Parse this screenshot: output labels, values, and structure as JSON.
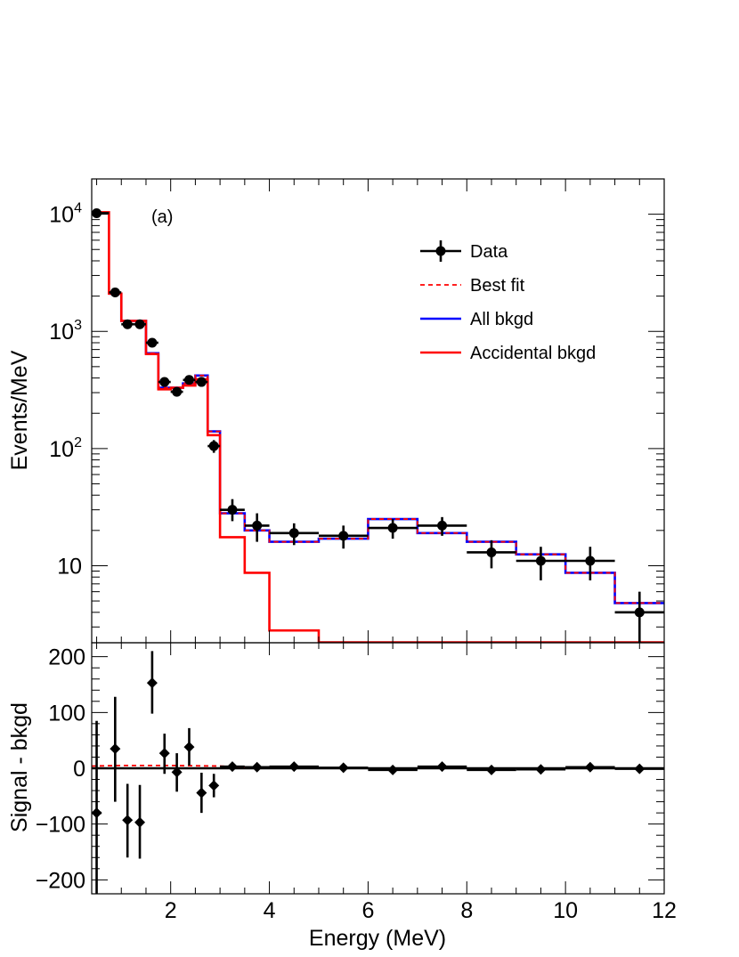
{
  "chart_data": [
    {
      "type": "line",
      "panel": "top",
      "ylabel": "Events/MeV",
      "yscale": "log",
      "ylim": [
        2.2,
        20000
      ],
      "xlim": [
        0.4,
        12
      ],
      "annotation": "(a)",
      "ytick_labels": [
        {
          "value": 10,
          "base": "10",
          "exp": ""
        },
        {
          "value": 100,
          "base": "10",
          "exp": "2"
        },
        {
          "value": 1000,
          "base": "10",
          "exp": "3"
        },
        {
          "value": 10000,
          "base": "10",
          "exp": "4"
        }
      ],
      "legend": {
        "placement": "top-right",
        "entries": [
          {
            "label": "Data",
            "style": "marker",
            "color": "#000000"
          },
          {
            "label": "Best fit",
            "style": "dashed",
            "color": "#ff0000"
          },
          {
            "label": "All bkgd",
            "style": "solid",
            "color": "#0000ff"
          },
          {
            "label": "Accidental bkgd",
            "style": "solid",
            "color": "#ff0000"
          }
        ]
      },
      "series": [
        {
          "name": "Data",
          "color": "#000000",
          "points": [
            {
              "x": 0.5,
              "y": 10200,
              "xlo": 0.4,
              "xhi": 0.75,
              "ylo": 10100,
              "yhi": 10300
            },
            {
              "x": 0.875,
              "y": 2150,
              "xlo": 0.75,
              "xhi": 1.0,
              "ylo": 2100,
              "yhi": 2200
            },
            {
              "x": 1.125,
              "y": 1150,
              "xlo": 1.0,
              "xhi": 1.25,
              "ylo": 1110,
              "yhi": 1190
            },
            {
              "x": 1.375,
              "y": 1150,
              "xlo": 1.25,
              "xhi": 1.5,
              "ylo": 1110,
              "yhi": 1190
            },
            {
              "x": 1.625,
              "y": 800,
              "xlo": 1.5,
              "xhi": 1.75,
              "ylo": 770,
              "yhi": 830
            },
            {
              "x": 1.875,
              "y": 370,
              "xlo": 1.75,
              "xhi": 2.0,
              "ylo": 350,
              "yhi": 390
            },
            {
              "x": 2.125,
              "y": 305,
              "xlo": 2.0,
              "xhi": 2.25,
              "ylo": 285,
              "yhi": 325
            },
            {
              "x": 2.375,
              "y": 385,
              "xlo": 2.25,
              "xhi": 2.5,
              "ylo": 365,
              "yhi": 405
            },
            {
              "x": 2.625,
              "y": 370,
              "xlo": 2.5,
              "xhi": 2.75,
              "ylo": 350,
              "yhi": 390
            },
            {
              "x": 2.875,
              "y": 105,
              "xlo": 2.75,
              "xhi": 3.0,
              "ylo": 92,
              "yhi": 118
            },
            {
              "x": 3.25,
              "y": 30,
              "xlo": 3.0,
              "xhi": 3.5,
              "ylo": 24,
              "yhi": 37
            },
            {
              "x": 3.75,
              "y": 22,
              "xlo": 3.5,
              "xhi": 4.0,
              "ylo": 16,
              "yhi": 28
            },
            {
              "x": 4.5,
              "y": 19,
              "xlo": 4.0,
              "xhi": 5.0,
              "ylo": 15,
              "yhi": 23
            },
            {
              "x": 5.5,
              "y": 18,
              "xlo": 5.0,
              "xhi": 6.0,
              "ylo": 14,
              "yhi": 22
            },
            {
              "x": 6.5,
              "y": 21,
              "xlo": 6.0,
              "xhi": 7.0,
              "ylo": 17,
              "yhi": 25
            },
            {
              "x": 7.5,
              "y": 22,
              "xlo": 7.0,
              "xhi": 8.0,
              "ylo": 18,
              "yhi": 26
            },
            {
              "x": 8.5,
              "y": 13,
              "xlo": 8.0,
              "xhi": 9.0,
              "ylo": 9.5,
              "yhi": 16.5
            },
            {
              "x": 9.5,
              "y": 11,
              "xlo": 9.0,
              "xhi": 10.0,
              "ylo": 7.5,
              "yhi": 14.5
            },
            {
              "x": 10.5,
              "y": 11,
              "xlo": 10.0,
              "xhi": 11.0,
              "ylo": 7.5,
              "yhi": 14.5
            },
            {
              "x": 11.5,
              "y": 4,
              "xlo": 11.0,
              "xhi": 12.0,
              "ylo": 1.5,
              "yhi": 6
            }
          ]
        },
        {
          "name": "All bkgd",
          "color": "#0000ff",
          "step_edges": [
            0.75,
            1.0,
            1.25,
            1.5,
            1.75,
            2.0,
            2.25,
            2.5,
            2.75,
            3.0,
            3.5,
            4.0,
            5.0,
            6.0,
            7.0,
            8.0,
            9.0,
            10.0,
            11.0,
            12.0
          ],
          "step_values": [
            2100,
            1230,
            1230,
            650,
            330,
            330,
            360,
            420,
            140,
            28,
            20,
            16,
            17,
            25,
            19,
            16,
            12.5,
            8.7,
            4.8
          ]
        },
        {
          "name": "Accidental bkgd",
          "color": "#ff0000",
          "step_edges": [
            0.55,
            0.75,
            1.0,
            1.25,
            1.5,
            1.75,
            2.0,
            2.25,
            2.5,
            2.75,
            3.0,
            3.5,
            4.0,
            5.0
          ],
          "step_values": [
            10400,
            2100,
            1230,
            1230,
            640,
            320,
            330,
            345,
            390,
            130,
            17.5,
            8.7,
            2.8
          ]
        },
        {
          "name": "Best fit",
          "color": "#ff0000",
          "step_edges": [
            0.55,
            0.75,
            1.0,
            1.25,
            1.5,
            1.75,
            2.0,
            2.25,
            2.5,
            2.75,
            3.0,
            3.5,
            4.0,
            5.0,
            6.0,
            7.0,
            8.0,
            9.0,
            10.0,
            11.0,
            12.0
          ],
          "step_values": [
            10400,
            2100,
            1230,
            1230,
            650,
            330,
            330,
            360,
            420,
            140,
            28,
            20,
            16,
            17,
            25,
            19,
            16,
            12.5,
            8.7,
            4.8
          ]
        }
      ]
    },
    {
      "type": "scatter",
      "panel": "bottom",
      "xlabel": "Energy (MeV)",
      "ylabel": "Signal - bkgd",
      "xlim": [
        0.4,
        12
      ],
      "ylim": [
        -225,
        225
      ],
      "xticks": [
        2,
        4,
        6,
        8,
        10,
        12
      ],
      "yticks": [
        -200,
        -100,
        0,
        100,
        200
      ],
      "ytick_labels": [
        "−200",
        "−100",
        "0",
        "100",
        "200"
      ],
      "series": [
        {
          "name": "Data",
          "color": "#000000",
          "points": [
            {
              "x": 0.5,
              "y": -80,
              "xlo": 0.4,
              "xhi": 0.6,
              "ylo": -225,
              "yhi": 85
            },
            {
              "x": 0.875,
              "y": 35,
              "xlo": 0.8,
              "xhi": 0.95,
              "ylo": -60,
              "yhi": 128
            },
            {
              "x": 1.125,
              "y": -93,
              "xlo": 1.05,
              "xhi": 1.2,
              "ylo": -160,
              "yhi": -28
            },
            {
              "x": 1.375,
              "y": -97,
              "xlo": 1.3,
              "xhi": 1.45,
              "ylo": -162,
              "yhi": -30
            },
            {
              "x": 1.625,
              "y": 153,
              "xlo": 1.55,
              "xhi": 1.7,
              "ylo": 98,
              "yhi": 210
            },
            {
              "x": 1.875,
              "y": 27,
              "xlo": 1.8,
              "xhi": 1.95,
              "ylo": -10,
              "yhi": 62
            },
            {
              "x": 2.125,
              "y": -7,
              "xlo": 2.05,
              "xhi": 2.2,
              "ylo": -42,
              "yhi": 27
            },
            {
              "x": 2.375,
              "y": 38,
              "xlo": 2.3,
              "xhi": 2.45,
              "ylo": 5,
              "yhi": 72
            },
            {
              "x": 2.625,
              "y": -44,
              "xlo": 2.55,
              "xhi": 2.7,
              "ylo": -80,
              "yhi": -8
            },
            {
              "x": 2.875,
              "y": -31,
              "xlo": 2.8,
              "xhi": 2.95,
              "ylo": -52,
              "yhi": -10
            },
            {
              "x": 3.25,
              "y": 3,
              "xlo": 3.0,
              "xhi": 3.5,
              "ylo": -4,
              "yhi": 10
            },
            {
              "x": 3.75,
              "y": 2,
              "xlo": 3.5,
              "xhi": 4.0,
              "ylo": -5,
              "yhi": 9
            },
            {
              "x": 4.5,
              "y": 3,
              "xlo": 4.0,
              "xhi": 5.0,
              "ylo": -2,
              "yhi": 8
            },
            {
              "x": 5.5,
              "y": 1,
              "xlo": 5.0,
              "xhi": 6.0,
              "ylo": -4,
              "yhi": 6
            },
            {
              "x": 6.5,
              "y": -3,
              "xlo": 6.0,
              "xhi": 7.0,
              "ylo": -8,
              "yhi": 2
            },
            {
              "x": 7.5,
              "y": 3,
              "xlo": 7.0,
              "xhi": 8.0,
              "ylo": -2,
              "yhi": 8
            },
            {
              "x": 8.5,
              "y": -3,
              "xlo": 8.0,
              "xhi": 9.0,
              "ylo": -7,
              "yhi": 1
            },
            {
              "x": 9.5,
              "y": -2,
              "xlo": 9.0,
              "xhi": 10.0,
              "ylo": -6,
              "yhi": 2
            },
            {
              "x": 10.5,
              "y": 2,
              "xlo": 10.0,
              "xhi": 11.0,
              "ylo": -2,
              "yhi": 6
            },
            {
              "x": 11.5,
              "y": -1,
              "xlo": 11.0,
              "xhi": 12.0,
              "ylo": -4,
              "yhi": 2
            }
          ]
        },
        {
          "name": "Best fit - bkgd",
          "color": "#ff0000",
          "style": "dashed",
          "x": [
            0.4,
            1.0,
            2.0,
            3.0,
            3.5
          ],
          "y": [
            4,
            5,
            5,
            4,
            2
          ]
        }
      ]
    }
  ]
}
